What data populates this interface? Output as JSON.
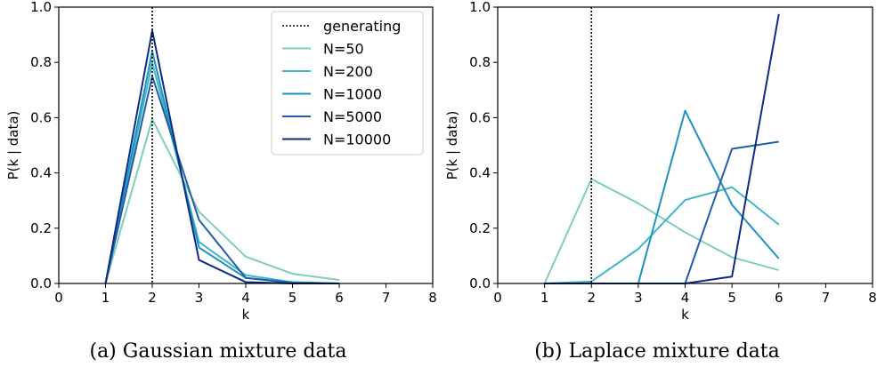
{
  "chart_data": [
    {
      "type": "line",
      "caption": "(a) Gaussian mixture data",
      "xlabel": "k",
      "ylabel": "P(k | data)",
      "xlim": [
        0,
        8
      ],
      "ylim": [
        0,
        1.0
      ],
      "xticks": [
        "0",
        "1",
        "2",
        "3",
        "4",
        "5",
        "6",
        "7",
        "8"
      ],
      "yticks": [
        "0.0",
        "0.2",
        "0.4",
        "0.6",
        "0.8",
        "1.0"
      ],
      "generating_k": 2,
      "legend": {
        "placement": "top-right",
        "generating_label": "generating"
      },
      "x": [
        1,
        2,
        3,
        4,
        5,
        6
      ],
      "series": [
        {
          "name": "N=50",
          "color": "#7fcdbb",
          "values": [
            0.0,
            0.595,
            0.26,
            0.097,
            0.035,
            0.013
          ]
        },
        {
          "name": "N=200",
          "color": "#41b6c4",
          "values": [
            0.0,
            0.8,
            0.15,
            0.03,
            0.005,
            0.0
          ]
        },
        {
          "name": "N=1000",
          "color": "#1d91c0",
          "values": [
            0.0,
            0.84,
            0.13,
            0.02,
            0.004,
            0.0
          ]
        },
        {
          "name": "N=5000",
          "color": "#225ea8",
          "values": [
            0.0,
            0.75,
            0.23,
            0.02,
            0.002,
            0.0
          ]
        },
        {
          "name": "N=10000",
          "color": "#0c2c84",
          "values": [
            0.0,
            0.915,
            0.085,
            0.005,
            0.0,
            0.0
          ]
        }
      ]
    },
    {
      "type": "line",
      "caption": "(b) Laplace mixture data",
      "xlabel": "k",
      "ylabel": "P(k | data)",
      "xlim": [
        0,
        8
      ],
      "ylim": [
        0,
        1.0
      ],
      "xticks": [
        "0",
        "1",
        "2",
        "3",
        "4",
        "5",
        "6",
        "7",
        "8"
      ],
      "yticks": [
        "0.0",
        "0.2",
        "0.4",
        "0.6",
        "0.8",
        "1.0"
      ],
      "generating_k": 2,
      "x": [
        1,
        2,
        3,
        4,
        5,
        6
      ],
      "series": [
        {
          "name": "N=50",
          "color": "#7fcdbb",
          "values": [
            0.0,
            0.378,
            0.29,
            0.185,
            0.095,
            0.048
          ]
        },
        {
          "name": "N=200",
          "color": "#41b6c4",
          "values": [
            0.0,
            0.007,
            0.125,
            0.302,
            0.348,
            0.213
          ]
        },
        {
          "name": "N=1000",
          "color": "#1d91c0",
          "values": [
            0.0,
            0.0,
            0.0,
            0.625,
            0.285,
            0.09
          ]
        },
        {
          "name": "N=5000",
          "color": "#225ea8",
          "values": [
            0.0,
            0.0,
            0.0,
            0.0,
            0.487,
            0.513
          ]
        },
        {
          "name": "N=10000",
          "color": "#0c2c84",
          "values": [
            0.0,
            0.0,
            0.0,
            0.0,
            0.025,
            0.975
          ]
        }
      ]
    }
  ]
}
